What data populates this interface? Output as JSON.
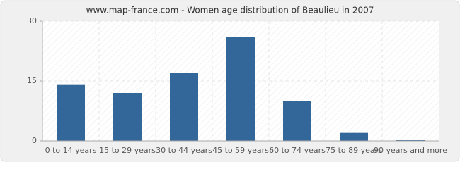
{
  "chart_data": {
    "type": "bar",
    "title": "www.map-france.com - Women age distribution of Beaulieu in 2007",
    "categories": [
      "0 to 14 years",
      "15 to 29 years",
      "30 to 44 years",
      "45 to 59 years",
      "60 to 74 years",
      "75 to 89 years",
      "90 years and more"
    ],
    "values": [
      14,
      12,
      17,
      26,
      10,
      2,
      0
    ],
    "color": "#336699",
    "ylim": [
      0,
      30
    ],
    "yticks": [
      0,
      15,
      30
    ],
    "grid": true
  }
}
